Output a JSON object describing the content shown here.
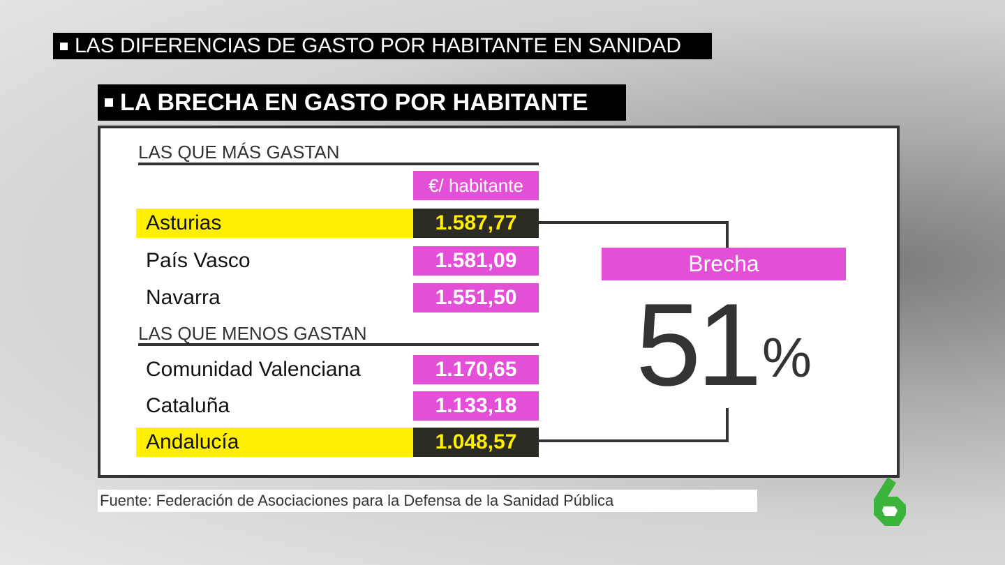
{
  "header": {
    "title": "LAS DIFERENCIAS DE GASTO POR HABITANTE EN SANIDAD",
    "subtitle": "LA BRECHA EN GASTO POR HABITANTE"
  },
  "table": {
    "column_header": "€/ habitante",
    "sections": [
      {
        "title": "LAS QUE MÁS GASTAN",
        "rows": [
          [
            "Asturias",
            "1.587,77"
          ],
          [
            "País Vasco",
            "1.581,09"
          ],
          [
            "Navarra",
            "1.551,50"
          ]
        ]
      },
      {
        "title": "LAS QUE MENOS GASTAN",
        "rows": [
          [
            "Comunidad Valenciana",
            "1.170,65"
          ],
          [
            "Cataluña",
            "1.133,18"
          ],
          [
            "Andalucía",
            "1.048,57"
          ]
        ]
      }
    ]
  },
  "gap": {
    "label": "Brecha",
    "value": "51",
    "unit": "%"
  },
  "source": "Fuente: Federación de Asociaciones para la Defensa de la Sanidad Pública"
}
